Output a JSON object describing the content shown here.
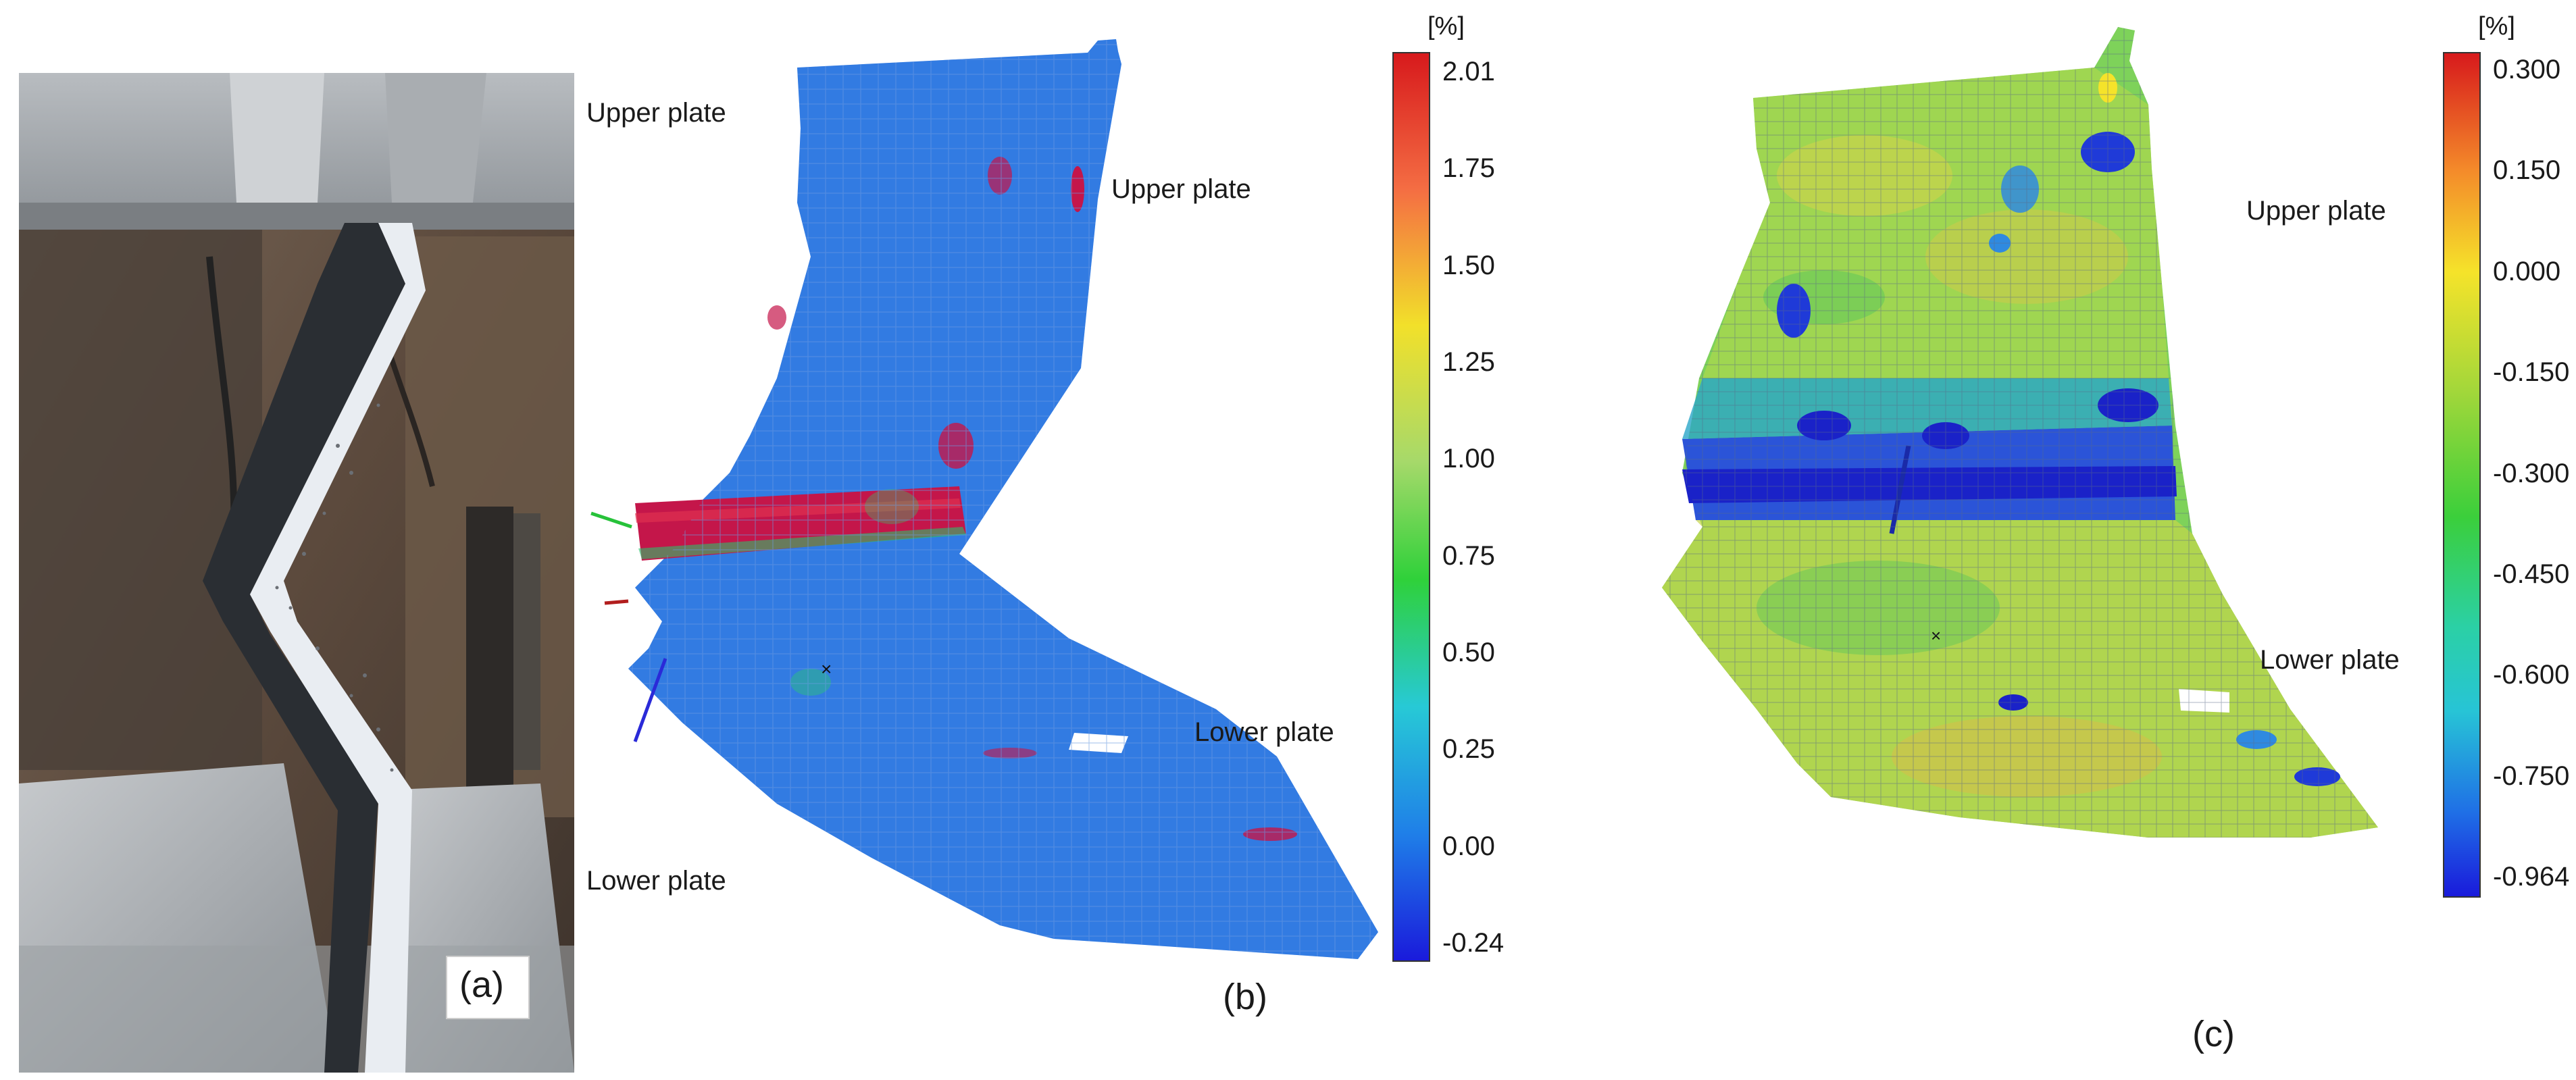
{
  "photo": {
    "panel_label": "(a)"
  },
  "panel_b": {
    "panel_label": "(b)",
    "unit": "[%]",
    "ticks": [
      "2.01",
      "1.75",
      "1.50",
      "1.25",
      "1.00",
      "0.75",
      "0.50",
      "0.25",
      "0.00",
      "-0.24"
    ],
    "labels": {
      "upper_left": "Upper plate",
      "upper_right": "Upper plate",
      "lower_left": "Lower plate",
      "lower_right": "Lower plate"
    },
    "colors": [
      "#e31a1c",
      "#f46d43",
      "#fdae61",
      "#fee08b",
      "#a6d96a",
      "#3bcf3b",
      "#27c4d6",
      "#1f9fe6",
      "#1f57e8",
      "#1a1adb"
    ]
  },
  "panel_c": {
    "panel_label": "(c)",
    "unit": "[%]",
    "ticks": [
      "0.300",
      "0.150",
      "0.000",
      "-0.150",
      "-0.300",
      "-0.450",
      "-0.600",
      "-0.750",
      "-0.964"
    ],
    "labels": {
      "upper": "Upper plate",
      "lower": "Lower plate"
    },
    "colors": [
      "#e31a1c",
      "#f48b2a",
      "#f5e32a",
      "#a3d73a",
      "#3bcf3b",
      "#2bd0a5",
      "#27c4d6",
      "#1f6fe6",
      "#1a1adb"
    ]
  }
}
